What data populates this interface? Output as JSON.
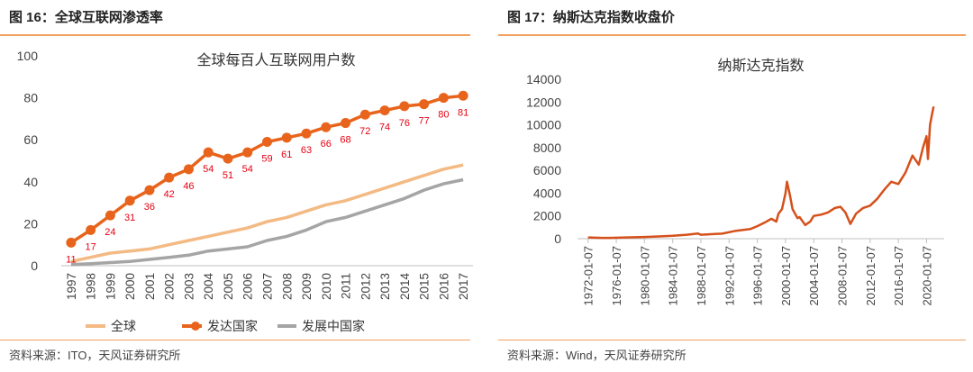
{
  "colors": {
    "accent": "#e8641c",
    "light_orange": "#f3ba84",
    "gray": "#a5a5a5",
    "red_label": "#e60012",
    "nasdaq": "#d5501b"
  },
  "left": {
    "title": "图 16：全球互联网渗透率",
    "source": "资料来源：ITO，天风证券研究所"
  },
  "right": {
    "title": "图 17：纳斯达克指数收盘价",
    "source": "资料来源：Wind，天风证券研究所"
  },
  "chart_data": [
    {
      "type": "line",
      "title": "全球每百人互联网用户数",
      "categories": [
        "1997",
        "1998",
        "1999",
        "2000",
        "2001",
        "2002",
        "2003",
        "2004",
        "2005",
        "2006",
        "2007",
        "2008",
        "2009",
        "2010",
        "2011",
        "2012",
        "2013",
        "2014",
        "2015",
        "2016",
        "2017"
      ],
      "ylim": [
        0,
        100
      ],
      "yticks": [
        "0",
        "20",
        "40",
        "60",
        "80",
        "100"
      ],
      "grid": false,
      "legend_position": "bottom",
      "series": [
        {
          "name": "全球",
          "values": [
            2,
            4,
            6,
            7,
            8,
            10,
            12,
            14,
            16,
            18,
            21,
            23,
            26,
            29,
            31,
            34,
            37,
            40,
            43,
            46,
            48
          ]
        },
        {
          "name": "发达国家",
          "values": [
            11,
            17,
            24,
            31,
            36,
            42,
            46,
            54,
            51,
            54,
            59,
            61,
            63,
            66,
            68,
            72,
            74,
            76,
            77,
            80,
            81
          ],
          "data_labels": [
            "11",
            "17",
            "24",
            "31",
            "36",
            "42",
            "46",
            "54",
            "51",
            "54",
            "59",
            "61",
            "63",
            "66",
            "68",
            "72",
            "74",
            "76",
            "77",
            "80",
            "81"
          ]
        },
        {
          "name": "发展中国家",
          "values": [
            0.5,
            1,
            1.5,
            2,
            3,
            4,
            5,
            7,
            8,
            9,
            12,
            14,
            17,
            21,
            23,
            26,
            29,
            32,
            36,
            39,
            41
          ]
        }
      ]
    },
    {
      "type": "line",
      "title": "纳斯达克指数",
      "ylim": [
        0,
        14000
      ],
      "yticks": [
        "0",
        "2000",
        "4000",
        "6000",
        "8000",
        "10000",
        "12000",
        "14000"
      ],
      "x_tick_labels": [
        "1972-01-07",
        "1976-01-07",
        "1980-01-07",
        "1984-01-07",
        "1988-01-07",
        "1992-01-07",
        "1996-01-07",
        "2000-01-07",
        "2004-01-07",
        "2008-01-07",
        "2012-01-07",
        "2016-01-07",
        "2020-01-07"
      ],
      "grid": false,
      "series": [
        {
          "name": "纳斯达克指数",
          "x": [
            1972.0,
            1974.0,
            1975.0,
            1978.0,
            1980.0,
            1982.0,
            1984.0,
            1986.0,
            1987.6,
            1988.0,
            1990.0,
            1991.0,
            1993.0,
            1995.0,
            1996.0,
            1997.0,
            1998.0,
            1998.7,
            1999.0,
            1999.5,
            2000.0,
            2000.2,
            2000.6,
            2001.0,
            2001.7,
            2002.0,
            2002.8,
            2003.5,
            2004.0,
            2005.0,
            2006.0,
            2007.0,
            2007.8,
            2008.5,
            2009.2,
            2010.0,
            2011.0,
            2012.0,
            2013.0,
            2014.0,
            2015.0,
            2016.0,
            2017.0,
            2018.0,
            2018.9,
            2019.5,
            2020.0,
            2020.2,
            2020.5,
            2020.8,
            2021.0
          ],
          "values": [
            110,
            70,
            75,
            120,
            150,
            195,
            250,
            350,
            450,
            350,
            420,
            440,
            700,
            850,
            1100,
            1400,
            1750,
            1500,
            2200,
            2600,
            4000,
            5000,
            3900,
            2600,
            1800,
            1900,
            1200,
            1500,
            2000,
            2100,
            2300,
            2700,
            2800,
            2300,
            1300,
            2200,
            2700,
            2900,
            3500,
            4300,
            5000,
            4800,
            5800,
            7300,
            6500,
            8000,
            9000,
            7000,
            10000,
            11000,
            11600
          ]
        }
      ]
    }
  ]
}
